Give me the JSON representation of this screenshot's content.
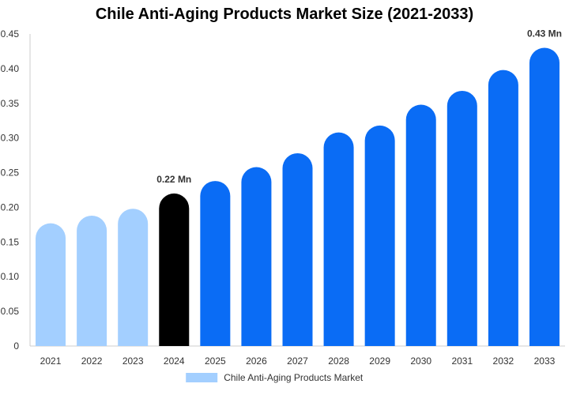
{
  "chart_data": {
    "type": "bar",
    "title": "Chile Anti-Aging Products Market Size (2021-2033)",
    "xlabel": "",
    "ylabel": "",
    "categories": [
      "2021",
      "2022",
      "2023",
      "2024",
      "2025",
      "2026",
      "2027",
      "2028",
      "2029",
      "2030",
      "2031",
      "2032",
      "2033"
    ],
    "series": [
      {
        "name": "Chile Anti-Aging Products Market",
        "values": [
          0.177,
          0.188,
          0.198,
          0.22,
          0.238,
          0.258,
          0.278,
          0.308,
          0.318,
          0.348,
          0.368,
          0.398,
          0.43
        ]
      }
    ],
    "ylim": [
      0,
      0.45
    ],
    "yticks": [
      "0",
      "0.05",
      "0.10",
      "0.15",
      "0.20",
      "0.25",
      "0.30",
      "0.35",
      "0.40",
      "0.45"
    ],
    "ytick_values": [
      0,
      0.05,
      0.1,
      0.15,
      0.2,
      0.25,
      0.3,
      0.35,
      0.4,
      0.45
    ],
    "data_labels": [
      {
        "category": "2024",
        "text": "0.22 Mn"
      },
      {
        "category": "2033",
        "text": "0.43 Mn"
      }
    ],
    "bar_colors": {
      "past": "#a3cfff",
      "current": "#000000",
      "forecast": "#0a6cf5"
    },
    "highlight_category": "2024",
    "grid": false,
    "legend": {
      "position": "bottom-center",
      "swatch_color": "#a3cfff"
    }
  }
}
